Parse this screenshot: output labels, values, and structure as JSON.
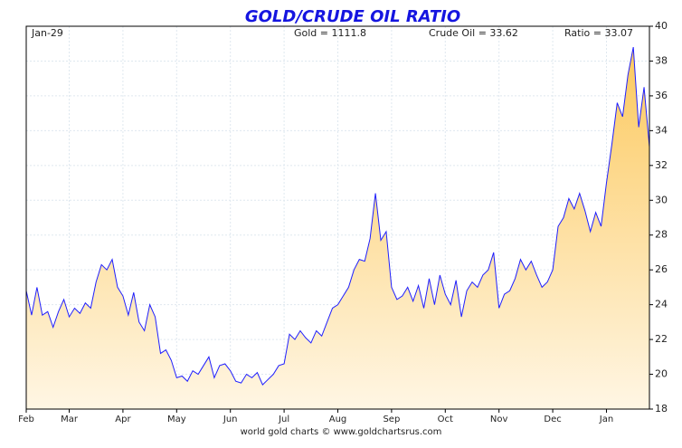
{
  "chart_data": {
    "type": "area",
    "title": "GOLD/CRUDE OIL RATIO",
    "header": [
      "Jan-29",
      "Gold = 1111.8",
      "Crude Oil = 33.62",
      "Ratio = 33.07"
    ],
    "footer": "world gold charts © www.goldchartsrus.com",
    "categories": [
      "Feb",
      null,
      null,
      null,
      null,
      null,
      null,
      null,
      "Mar",
      null,
      null,
      null,
      null,
      null,
      null,
      null,
      null,
      null,
      "Apr",
      null,
      null,
      null,
      null,
      null,
      null,
      null,
      null,
      null,
      "May",
      null,
      null,
      null,
      null,
      null,
      null,
      null,
      null,
      null,
      "Jun",
      null,
      null,
      null,
      null,
      null,
      null,
      null,
      null,
      null,
      "Jul",
      null,
      null,
      null,
      null,
      null,
      null,
      null,
      null,
      null,
      "Aug",
      null,
      null,
      null,
      null,
      null,
      null,
      null,
      null,
      null,
      "Sep",
      null,
      null,
      null,
      null,
      null,
      null,
      null,
      null,
      null,
      "Oct",
      null,
      null,
      null,
      null,
      null,
      null,
      null,
      null,
      null,
      "Nov",
      null,
      null,
      null,
      null,
      null,
      null,
      null,
      null,
      null,
      "Dec",
      null,
      null,
      null,
      null,
      null,
      null,
      null,
      null,
      null,
      "Jan",
      null,
      null,
      null,
      null,
      null,
      null,
      null,
      null
    ],
    "values": [
      24.8,
      23.4,
      25.0,
      23.4,
      23.6,
      22.7,
      23.6,
      24.3,
      23.3,
      23.8,
      23.5,
      24.1,
      23.8,
      25.3,
      26.3,
      26.0,
      26.6,
      25.0,
      24.5,
      23.4,
      24.7,
      23.0,
      22.5,
      24.0,
      23.3,
      21.2,
      21.4,
      20.8,
      19.8,
      19.9,
      19.6,
      20.2,
      20.0,
      20.5,
      21.0,
      19.8,
      20.5,
      20.6,
      20.2,
      19.6,
      19.5,
      20.0,
      19.8,
      20.1,
      19.4,
      19.7,
      20.0,
      20.5,
      20.6,
      22.3,
      22.0,
      22.5,
      22.1,
      21.8,
      22.5,
      22.2,
      23.0,
      23.8,
      24.0,
      24.5,
      25.0,
      26.0,
      26.6,
      26.5,
      27.8,
      30.4,
      27.7,
      28.2,
      25.0,
      24.3,
      24.5,
      25.0,
      24.2,
      25.1,
      23.8,
      25.5,
      24.0,
      25.7,
      24.6,
      24.0,
      25.4,
      23.3,
      24.8,
      25.3,
      25.0,
      25.7,
      26.0,
      27.0,
      23.8,
      24.6,
      24.8,
      25.5,
      26.6,
      26.0,
      26.5,
      25.7,
      25.0,
      25.3,
      26.0,
      28.5,
      29.0,
      30.1,
      29.5,
      30.4,
      29.4,
      28.2,
      29.3,
      28.5,
      31.0,
      33.2,
      35.6,
      34.8,
      37.2,
      38.8,
      34.2,
      36.5,
      33.07
    ],
    "color": "#1f1fff",
    "fill": [
      "#fcc95e",
      "#fff6e4"
    ],
    "ylim": [
      18,
      40
    ],
    "yticks": [
      18,
      20,
      22,
      24,
      26,
      28,
      30,
      32,
      34,
      36,
      38,
      40
    ],
    "grid": true
  }
}
